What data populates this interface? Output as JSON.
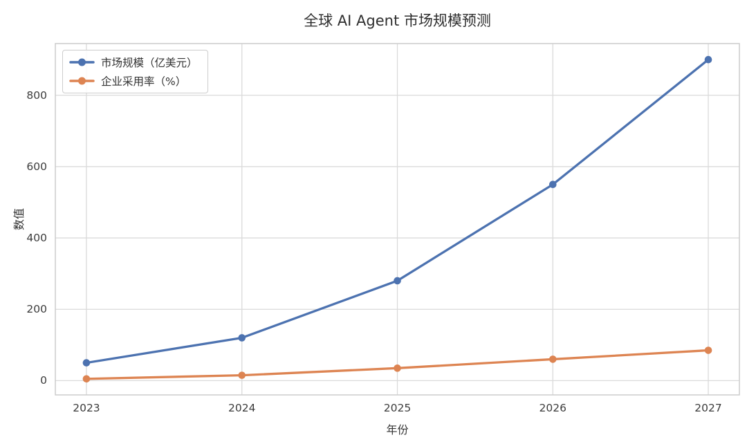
{
  "chart_data": {
    "type": "line",
    "title": "全球 AI Agent 市场规模预测",
    "xlabel": "年份",
    "ylabel": "数值",
    "x": [
      2023,
      2024,
      2025,
      2026,
      2027
    ],
    "series": [
      {
        "name": "市场规模（亿美元）",
        "values": [
          50,
          120,
          280,
          550,
          900
        ],
        "color": "#4C72B0"
      },
      {
        "name": "企业采用率（%）",
        "values": [
          5,
          15,
          35,
          60,
          85
        ],
        "color": "#DD8452"
      }
    ],
    "xticks": [
      2023,
      2024,
      2025,
      2026,
      2027
    ],
    "yticks": [
      0,
      200,
      400,
      600,
      800
    ],
    "xlim": [
      2022.8,
      2027.2
    ],
    "ylim": [
      -40,
      945
    ],
    "grid": true,
    "legend_position": "upper left",
    "grid_color": "#DADADA",
    "axes_edge_color": "#CCCCCC",
    "marker": "circle",
    "background": "#FFFFFF"
  }
}
